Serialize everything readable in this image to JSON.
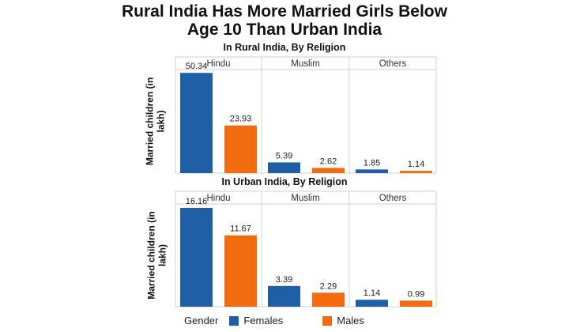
{
  "title": {
    "line1": "Rural India Has More Married Girls Below",
    "line2": "Age 10 Than Urban India"
  },
  "legend": {
    "title": "Gender",
    "items": [
      {
        "label": "Females",
        "color": "#1f5fa6"
      },
      {
        "label": "Males",
        "color": "#f26b0f"
      }
    ]
  },
  "chart_data": [
    {
      "type": "bar",
      "title": "In Rural India, By Religion",
      "ylabel": "Married children (in lakh)",
      "facets": [
        "Hindu",
        "Muslim",
        "Others"
      ],
      "series": [
        {
          "name": "Females",
          "values": [
            50.34,
            5.39,
            1.85
          ]
        },
        {
          "name": "Males",
          "values": [
            23.93,
            2.62,
            1.14
          ]
        }
      ],
      "ylim": [
        0,
        52
      ]
    },
    {
      "type": "bar",
      "title": "In Urban India, By Religion",
      "ylabel": "Married children (in lakh)",
      "facets": [
        "Hindu",
        "Muslim",
        "Others"
      ],
      "series": [
        {
          "name": "Females",
          "values": [
            16.16,
            3.39,
            1.14
          ]
        },
        {
          "name": "Males",
          "values": [
            11.67,
            2.29,
            0.99
          ]
        }
      ],
      "ylim": [
        0,
        16.8
      ]
    }
  ]
}
